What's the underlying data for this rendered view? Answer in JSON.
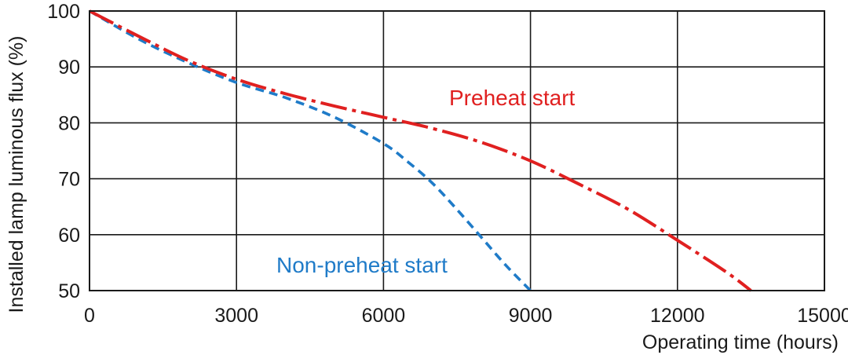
{
  "chart_data": {
    "type": "line",
    "xlabel": "Operating time (hours)",
    "ylabel": "Installed lamp luminous flux  (%)",
    "xlim": [
      0,
      15000
    ],
    "ylim": [
      50,
      100
    ],
    "x_ticks": [
      "0",
      "3000",
      "6000",
      "9000",
      "12000",
      "15000"
    ],
    "y_ticks": [
      "50",
      "60",
      "70",
      "80",
      "90",
      "100"
    ],
    "x_tick_values": [
      0,
      3000,
      6000,
      9000,
      12000,
      15000
    ],
    "y_tick_values": [
      50,
      60,
      70,
      80,
      90,
      100
    ],
    "grid": true,
    "series": [
      {
        "name": "Preheat start",
        "color": "#e02020",
        "line_style": "dash-dot",
        "x": [
          0,
          1000,
          2000,
          3000,
          4000,
          5000,
          6000,
          7000,
          8000,
          9000,
          10000,
          11000,
          12000,
          13000,
          13500
        ],
        "y": [
          100,
          95.5,
          91.2,
          87.8,
          85.2,
          83.0,
          81.0,
          79.0,
          76.5,
          73.2,
          69.0,
          64.5,
          59.0,
          53.3,
          50.0
        ]
      },
      {
        "name": "Non-preheat start",
        "color": "#1f7bc8",
        "line_style": "dashed",
        "x": [
          0,
          1000,
          2000,
          3000,
          4000,
          5000,
          6000,
          6500,
          7000,
          7500,
          8000,
          8500,
          9000
        ],
        "y": [
          100,
          95.0,
          90.8,
          87.2,
          84.5,
          81.0,
          76.3,
          73.0,
          69.2,
          64.5,
          59.5,
          54.5,
          50.0
        ]
      }
    ]
  }
}
